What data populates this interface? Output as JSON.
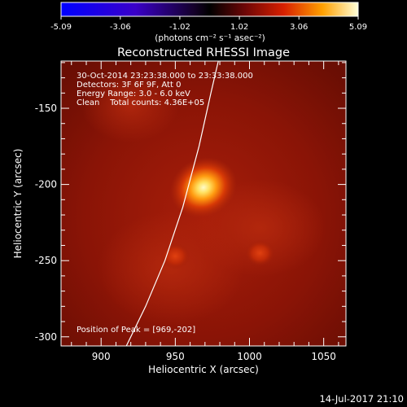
{
  "colorbar": {
    "tick_labels": [
      "-5.09",
      "-3.06",
      "-1.02",
      "1.02",
      "3.06",
      "5.09"
    ],
    "tick_values": [
      -5.09,
      -3.06,
      -1.02,
      1.02,
      3.06,
      5.09
    ],
    "range": [
      -5.09,
      5.09
    ],
    "unit_label": "(photons cm⁻² s⁻¹ asec⁻²)"
  },
  "image": {
    "title": "Reconstructed RHESSI Image",
    "annotation_lines": [
      "30-Oct-2014 23:23:38.000 to 23:33:38.000",
      "Detectors: 3F 6F 9F, Att 0",
      "Energy Range: 3.0 - 6.0 keV",
      "Clean    Total counts: 4.36E+05"
    ],
    "peak_label": "Position of Peak = [969,-202]",
    "x_axis_label": "Heliocentric X (arcsec)",
    "y_axis_label": "Heliocentric Y (arcsec)",
    "x_ticks": [
      "900",
      "950",
      "1000",
      "1050"
    ],
    "x_tick_values": [
      900,
      950,
      1000,
      1050
    ],
    "y_ticks": [
      "-150",
      "-200",
      "-250",
      "-300"
    ],
    "y_tick_values": [
      -150,
      -200,
      -250,
      -300
    ],
    "x_range": [
      873,
      1065
    ],
    "y_range": [
      -306,
      -119
    ],
    "peak_position": [
      969,
      -202
    ],
    "secondary_sources": [
      [
        950,
        -247
      ],
      [
        1007,
        -245
      ]
    ],
    "limb_points": [
      [
        917,
        -306
      ],
      [
        930,
        -280
      ],
      [
        943,
        -250
      ],
      [
        955,
        -215
      ],
      [
        966,
        -175
      ],
      [
        974,
        -140
      ],
      [
        979,
        -119
      ]
    ]
  },
  "footer": {
    "timestamp": "14-Jul-2017 21:10"
  },
  "colors": {
    "background": "#000000",
    "text": "#ffffff",
    "map_base": "#8c1508",
    "peak": "#fff9b8"
  }
}
